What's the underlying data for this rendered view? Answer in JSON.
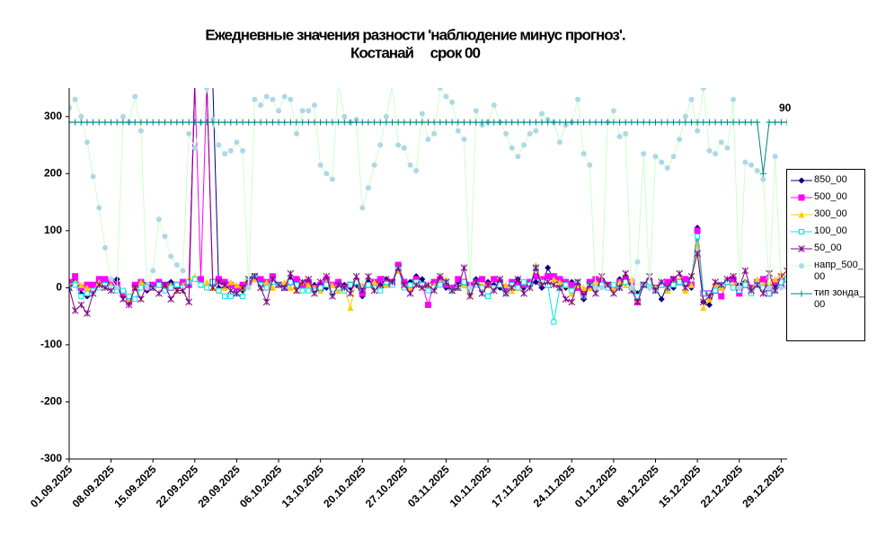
{
  "chart_data": {
    "type": "line",
    "title": "Ежедневные значения разности 'наблюдение минус прогноз'.",
    "subtitle": "Костанай     срок 00",
    "annotation": "90",
    "categories": [
      "01.09.2025",
      null,
      null,
      null,
      null,
      null,
      null,
      "08.09.2025",
      null,
      null,
      null,
      null,
      null,
      null,
      "15.09.2025",
      null,
      null,
      null,
      null,
      null,
      null,
      "22.09.2025",
      null,
      null,
      null,
      null,
      null,
      null,
      "29.09.2025",
      null,
      null,
      null,
      null,
      null,
      null,
      "06.10.2025",
      null,
      null,
      null,
      null,
      null,
      null,
      "13.10.2025",
      null,
      null,
      null,
      null,
      null,
      null,
      "20.10.2025",
      null,
      null,
      null,
      null,
      null,
      null,
      "27.10.2025",
      null,
      null,
      null,
      null,
      null,
      null,
      "03.11.2025",
      null,
      null,
      null,
      null,
      null,
      null,
      "10.11.2025",
      null,
      null,
      null,
      null,
      null,
      null,
      "17.11.2025",
      null,
      null,
      null,
      null,
      null,
      null,
      "24.11.2025",
      null,
      null,
      null,
      null,
      null,
      null,
      "01.12.2025",
      null,
      null,
      null,
      null,
      null,
      null,
      "08.12.2025",
      null,
      null,
      null,
      null,
      null,
      null,
      "15.12.2025",
      null,
      null,
      null,
      null,
      null,
      null,
      "22.12.2025",
      null,
      null,
      null,
      null,
      null,
      null,
      "29.12.2025",
      null
    ],
    "ylim": [
      -300,
      350
    ],
    "yticks": [
      -300,
      -200,
      -100,
      0,
      100,
      200,
      300
    ],
    "grid": false,
    "legend": "right",
    "series": [
      {
        "name": "850_00",
        "color": "#000080",
        "marker": "diamond",
        "values": [
          5,
          15,
          -10,
          -15,
          0,
          5,
          10,
          5,
          15,
          -15,
          -20,
          0,
          5,
          -5,
          0,
          5,
          0,
          10,
          0,
          5,
          5,
          360,
          360,
          360,
          360,
          0,
          0,
          5,
          0,
          -5,
          10,
          15,
          5,
          0,
          10,
          5,
          0,
          15,
          10,
          5,
          0,
          5,
          -5,
          0,
          5,
          10,
          5,
          0,
          5,
          -15,
          10,
          0,
          5,
          15,
          10,
          35,
          5,
          10,
          20,
          15,
          0,
          5,
          10,
          0,
          -5,
          10,
          5,
          -5,
          15,
          0,
          10,
          5,
          0,
          -10,
          5,
          15,
          0,
          5,
          10,
          0,
          35,
          15,
          5,
          0,
          10,
          5,
          -20,
          5,
          0,
          10,
          5,
          0,
          15,
          10,
          5,
          -10,
          5,
          0,
          0,
          -20,
          5,
          0,
          10,
          5,
          0,
          105,
          -25,
          -30,
          0,
          5,
          10,
          0,
          5,
          10,
          0,
          5,
          0,
          5,
          5,
          10,
          15
        ]
      },
      {
        "name": "500_00",
        "color": "#ff00ff",
        "marker": "square",
        "values": [
          10,
          20,
          0,
          5,
          5,
          15,
          15,
          10,
          5,
          -10,
          -25,
          5,
          10,
          0,
          5,
          10,
          5,
          0,
          5,
          10,
          5,
          360,
          15,
          360,
          10,
          15,
          10,
          5,
          0,
          5,
          10,
          20,
          15,
          10,
          20,
          5,
          0,
          10,
          15,
          5,
          10,
          0,
          5,
          15,
          5,
          10,
          0,
          5,
          10,
          -10,
          5,
          10,
          15,
          5,
          10,
          40,
          10,
          0,
          15,
          5,
          -30,
          10,
          15,
          5,
          0,
          15,
          10,
          5,
          10,
          15,
          5,
          15,
          10,
          0,
          10,
          5,
          5,
          10,
          20,
          15,
          20,
          20,
          15,
          10,
          5,
          0,
          -10,
          10,
          15,
          10,
          5,
          0,
          10,
          15,
          10,
          -25,
          5,
          10,
          0,
          5,
          10,
          15,
          10,
          15,
          5,
          100,
          -10,
          -10,
          -5,
          -15,
          10,
          15,
          -10,
          5,
          0,
          10,
          15,
          -10,
          10,
          5,
          15
        ]
      },
      {
        "name": "300_00",
        "color": "#ffcc00",
        "marker": "triangle",
        "values": [
          5,
          10,
          5,
          0,
          -5,
          10,
          5,
          5,
          0,
          -5,
          -20,
          0,
          10,
          5,
          0,
          5,
          0,
          5,
          -5,
          5,
          15,
          20,
          5,
          10,
          0,
          -5,
          0,
          10,
          5,
          0,
          20,
          15,
          5,
          10,
          0,
          5,
          10,
          0,
          -5,
          10,
          5,
          0,
          -5,
          10,
          5,
          -5,
          0,
          -35,
          15,
          5,
          5,
          10,
          0,
          5,
          10,
          30,
          5,
          0,
          10,
          5,
          0,
          5,
          10,
          15,
          -5,
          0,
          5,
          -10,
          10,
          5,
          5,
          0,
          10,
          5,
          -5,
          0,
          10,
          5,
          40,
          10,
          5,
          15,
          10,
          5,
          -10,
          5,
          0,
          0,
          10,
          5,
          5,
          0,
          10,
          5,
          15,
          -20,
          5,
          10,
          0,
          5,
          -5,
          10,
          15,
          -5,
          5,
          80,
          -35,
          -20,
          5,
          0,
          10,
          5,
          0,
          10,
          -5,
          15,
          5,
          10,
          15,
          25,
          20
        ]
      },
      {
        "name": "100_00",
        "color": "#00e5e5",
        "marker": "open-square",
        "values": [
          0,
          5,
          -15,
          -10,
          -5,
          0,
          5,
          0,
          -5,
          -5,
          -15,
          -20,
          0,
          5,
          0,
          5,
          -5,
          0,
          5,
          0,
          10,
          15,
          5,
          0,
          10,
          -5,
          -15,
          -15,
          -10,
          -15,
          15,
          20,
          5,
          0,
          10,
          5,
          0,
          10,
          5,
          -5,
          -5,
          -5,
          0,
          5,
          -10,
          0,
          -5,
          5,
          10,
          0,
          5,
          0,
          -5,
          10,
          5,
          35,
          0,
          5,
          10,
          5,
          -5,
          0,
          5,
          10,
          -5,
          0,
          10,
          -5,
          5,
          0,
          -15,
          0,
          5,
          -10,
          5,
          0,
          10,
          5,
          35,
          10,
          5,
          -60,
          0,
          5,
          -5,
          10,
          -15,
          5,
          0,
          5,
          0,
          5,
          0,
          10,
          0,
          -15,
          5,
          10,
          -5,
          5,
          0,
          5,
          10,
          5,
          15,
          90,
          -10,
          -10,
          -5,
          5,
          10,
          0,
          -5,
          5,
          -10,
          5,
          0,
          -10,
          -5,
          10,
          15
        ]
      },
      {
        "name": "50_00",
        "color": "#800080",
        "marker": "star",
        "values": [
          0,
          -40,
          -30,
          -45,
          -10,
          5,
          0,
          -5,
          5,
          -20,
          -30,
          0,
          -20,
          5,
          0,
          -10,
          5,
          -20,
          -5,
          -5,
          -25,
          360,
          360,
          360,
          0,
          10,
          5,
          -5,
          -10,
          0,
          15,
          20,
          0,
          -25,
          15,
          5,
          0,
          25,
          -5,
          10,
          15,
          -10,
          10,
          20,
          -15,
          5,
          0,
          -10,
          20,
          -5,
          20,
          -5,
          5,
          15,
          10,
          35,
          5,
          -10,
          5,
          0,
          5,
          -5,
          20,
          10,
          -5,
          0,
          35,
          -15,
          10,
          -10,
          5,
          -5,
          15,
          -10,
          0,
          15,
          -10,
          0,
          35,
          5,
          10,
          5,
          0,
          -20,
          -25,
          10,
          -15,
          5,
          -10,
          20,
          5,
          -10,
          0,
          25,
          -5,
          -25,
          5,
          20,
          -5,
          10,
          0,
          15,
          25,
          0,
          20,
          60,
          -25,
          -15,
          10,
          5,
          15,
          20,
          0,
          30,
          -5,
          5,
          -10,
          25,
          -5,
          20,
          30
        ]
      },
      {
        "name": "напр_500_00",
        "color": "#add8e6",
        "line_color": "#ccffcc",
        "marker": "circle",
        "values": [
          315,
          330,
          300,
          255,
          195,
          140,
          70,
          15,
          0,
          300,
          290,
          335,
          275,
          0,
          30,
          120,
          90,
          55,
          40,
          30,
          270,
          245,
          290,
          350,
          295,
          250,
          235,
          240,
          255,
          240,
          0,
          330,
          320,
          335,
          330,
          310,
          335,
          330,
          270,
          310,
          310,
          320,
          215,
          200,
          190,
          360,
          300,
          290,
          295,
          140,
          175,
          215,
          250,
          300,
          355,
          250,
          245,
          215,
          205,
          305,
          260,
          270,
          350,
          335,
          325,
          275,
          260,
          0,
          310,
          285,
          290,
          320,
          290,
          270,
          245,
          230,
          250,
          270,
          275,
          305,
          295,
          290,
          255,
          285,
          290,
          330,
          235,
          215,
          0,
          0,
          290,
          310,
          265,
          270,
          0,
          45,
          235,
          0,
          230,
          220,
          210,
          230,
          260,
          300,
          330,
          275,
          350,
          240,
          235,
          255,
          245,
          330,
          0,
          220,
          215,
          205,
          190,
          0,
          230,
          0,
          0
        ]
      },
      {
        "name": "тип зонда_00",
        "color": "#008080",
        "marker": "plus",
        "values": [
          290,
          290,
          290,
          290,
          290,
          290,
          290,
          290,
          290,
          290,
          290,
          290,
          290,
          290,
          290,
          290,
          290,
          290,
          290,
          290,
          290,
          290,
          290,
          290,
          290,
          290,
          290,
          290,
          290,
          290,
          290,
          290,
          290,
          290,
          290,
          290,
          290,
          290,
          290,
          290,
          290,
          290,
          290,
          290,
          290,
          290,
          290,
          290,
          290,
          290,
          290,
          290,
          290,
          290,
          290,
          290,
          290,
          290,
          290,
          290,
          290,
          290,
          290,
          290,
          290,
          290,
          290,
          290,
          290,
          290,
          290,
          290,
          290,
          290,
          290,
          290,
          290,
          290,
          290,
          290,
          290,
          290,
          290,
          290,
          290,
          290,
          290,
          290,
          290,
          290,
          290,
          290,
          290,
          290,
          290,
          290,
          290,
          290,
          290,
          290,
          290,
          290,
          290,
          290,
          290,
          290,
          290,
          290,
          290,
          290,
          290,
          290,
          290,
          290,
          290,
          290,
          200,
          290,
          290,
          290,
          290
        ]
      }
    ]
  }
}
